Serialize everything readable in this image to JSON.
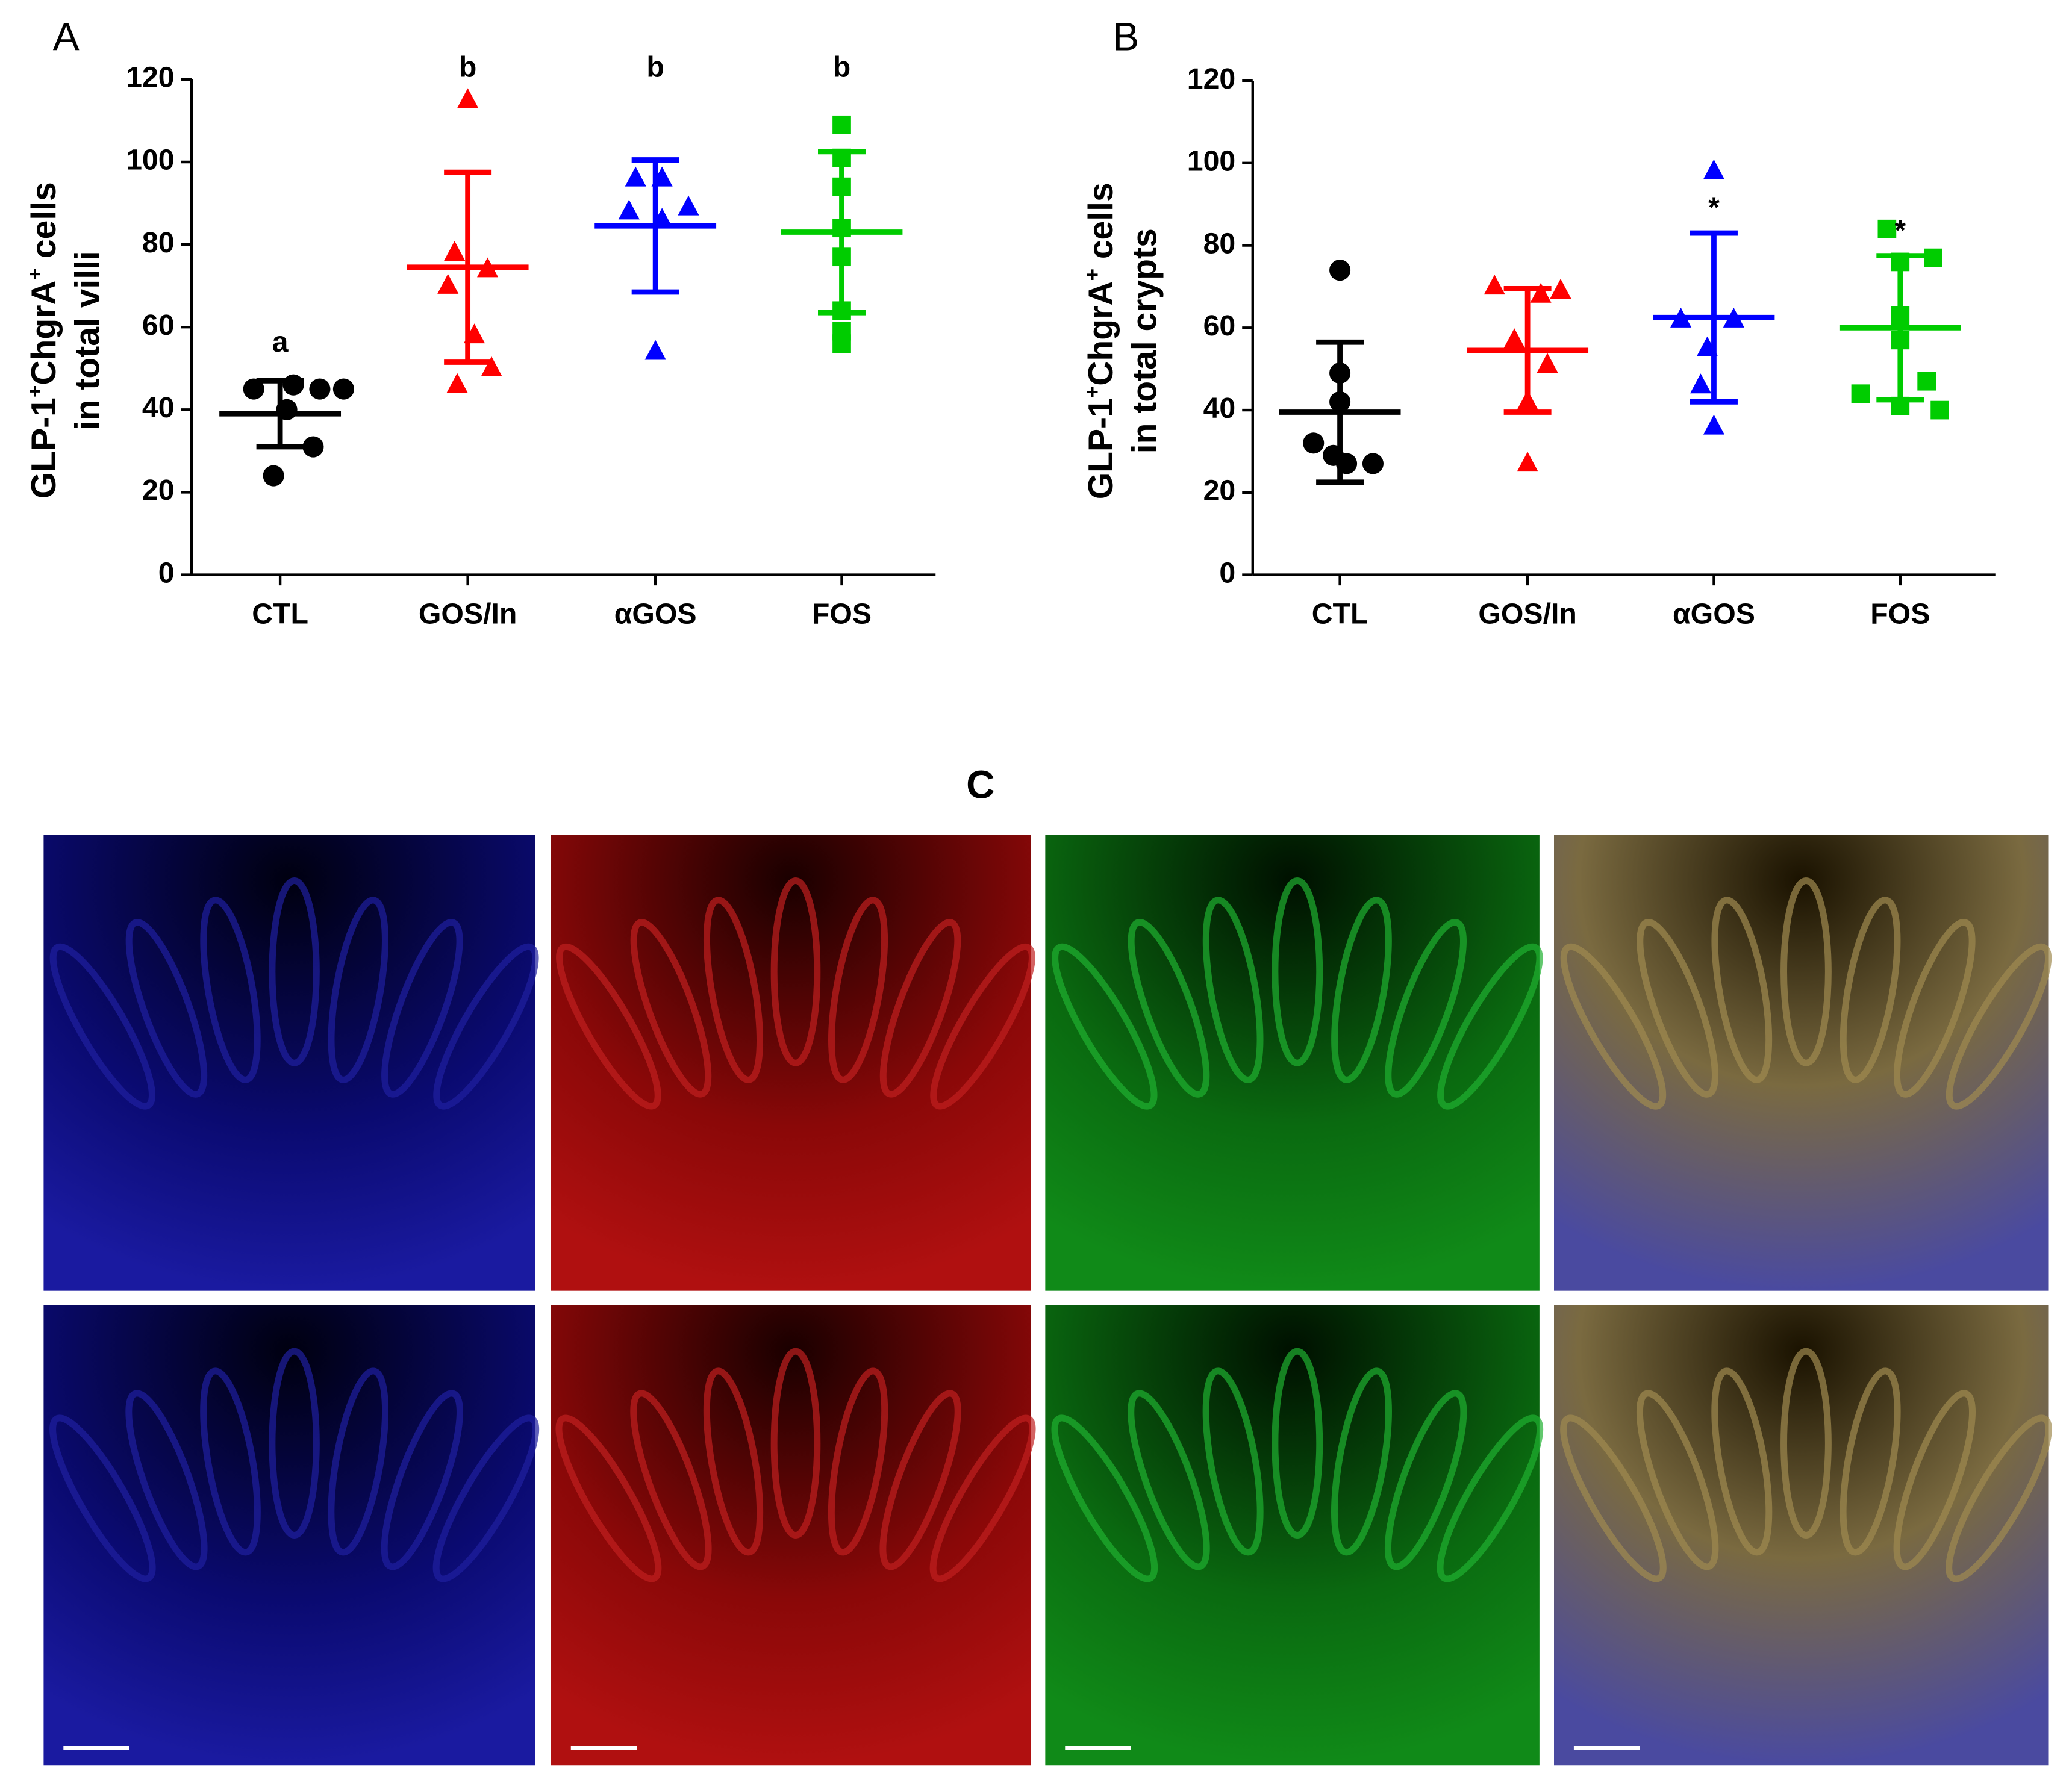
{
  "chart_data": [
    {
      "type": "dotplot",
      "panel": "A",
      "ylabel": {
        "line1": [
          "GLP-1",
          "+",
          "ChgrA",
          "+",
          " cells"
        ],
        "line2": "in total villi"
      },
      "ylim": [
        0,
        120
      ],
      "yticks": [
        0,
        20,
        40,
        60,
        80,
        100,
        120
      ],
      "series": [
        {
          "name": "CTL",
          "color": "#000000",
          "marker": "circle",
          "values": [
            45,
            46,
            45,
            45,
            40,
            31,
            24
          ],
          "mean": 39,
          "sd": 8,
          "annotation": "a"
        },
        {
          "name": "GOS/In",
          "color": "#ff0000",
          "marker": "triangle",
          "values": [
            115,
            78,
            74,
            70,
            58,
            50,
            46
          ],
          "mean": 74.5,
          "sd": 23,
          "annotation": "b"
        },
        {
          "name": "αGOS",
          "color": "#0000ff",
          "marker": "triangle",
          "values": [
            96,
            96,
            89,
            88,
            86,
            54
          ],
          "mean": 84.5,
          "sd": 16,
          "annotation": "b"
        },
        {
          "name": "FOS",
          "color": "#00cc00",
          "marker": "square",
          "values": [
            109,
            101,
            94,
            84,
            77,
            64,
            59,
            56
          ],
          "mean": 83,
          "sd": 19.5,
          "annotation": "b"
        }
      ]
    },
    {
      "type": "dotplot",
      "panel": "B",
      "ylabel": {
        "line1": [
          "GLP-1",
          "+",
          "ChgrA",
          "+",
          " cells"
        ],
        "line2": "in total crypts"
      },
      "ylim": [
        0,
        120
      ],
      "yticks": [
        0,
        20,
        40,
        60,
        80,
        100,
        120
      ],
      "series": [
        {
          "name": "CTL",
          "color": "#000000",
          "marker": "circle",
          "values": [
            74,
            49,
            42,
            32,
            29,
            27,
            27
          ],
          "mean": 39.5,
          "sd": 17
        },
        {
          "name": "GOS/In",
          "color": "#ff0000",
          "marker": "triangle",
          "values": [
            70,
            68,
            69,
            57,
            51,
            42,
            27
          ],
          "mean": 54.5,
          "sd": 15
        },
        {
          "name": "αGOS",
          "color": "#0000ff",
          "marker": "triangle",
          "values": [
            98,
            62,
            62,
            55,
            46,
            36
          ],
          "mean": 62.5,
          "sd": 20.5,
          "annotation": "*"
        },
        {
          "name": "FOS",
          "color": "#00cc00",
          "marker": "square",
          "values": [
            84,
            77,
            76,
            63,
            57,
            47,
            44,
            41,
            40
          ],
          "mean": 60,
          "sd": 17.5,
          "annotation": "*"
        }
      ]
    }
  ],
  "panel_c": {
    "label": "C"
  }
}
